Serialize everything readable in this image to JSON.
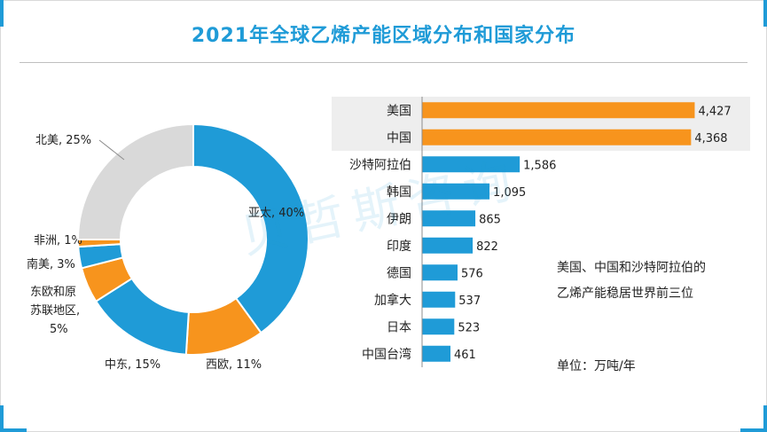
{
  "title": "2021年全球乙烯产能区域分布和国家分布",
  "watermark": "贝哲斯咨询",
  "colors": {
    "blue": "#1f9bd7",
    "orange": "#f7941d",
    "gray": "#d9d9d9",
    "highlight": "#eeeeee"
  },
  "note": "美国、中国和沙特阿拉伯的乙烯产能稳居世界前三位",
  "unit_label": "单位：万吨/年",
  "chart_data": [
    {
      "type": "pie",
      "subtype": "donut",
      "title": "2021年全球乙烯产能区域分布",
      "slices": [
        {
          "label": "亚太",
          "value": 40,
          "display": "亚太, 40%",
          "color": "#1f9bd7"
        },
        {
          "label": "西欧",
          "value": 11,
          "display": "西欧, 11%",
          "color": "#f7941d"
        },
        {
          "label": "中东",
          "value": 15,
          "display": "中东, 15%",
          "color": "#1f9bd7"
        },
        {
          "label": "东欧和原苏联地区",
          "value": 5,
          "display_lines": [
            "东欧和原",
            "苏联地区,",
            "5%"
          ],
          "color": "#f7941d"
        },
        {
          "label": "南美",
          "value": 3,
          "display": "南美, 3%",
          "color": "#1f9bd7"
        },
        {
          "label": "非洲",
          "value": 1,
          "display": "非洲, 1%",
          "color": "#f7941d"
        },
        {
          "label": "北美",
          "value": 25,
          "display": "北美, 25%",
          "color": "#d9d9d9"
        }
      ]
    },
    {
      "type": "bar",
      "orientation": "horizontal",
      "title": "2021年全球乙烯产能国家分布",
      "unit": "万吨/年",
      "xlim": [
        0,
        5000
      ],
      "categories": [
        "美国",
        "中国",
        "沙特阿拉伯",
        "韩国",
        "伊朗",
        "印度",
        "德国",
        "加拿大",
        "日本",
        "中国台湾"
      ],
      "values": [
        4427,
        4368,
        1586,
        1095,
        865,
        822,
        576,
        537,
        523,
        461
      ],
      "labels": [
        "4,427",
        "4,368",
        "1,586",
        "1,095",
        "865",
        "822",
        "576",
        "537",
        "523",
        "461"
      ],
      "highlighted": [
        "美国",
        "中国"
      ]
    }
  ]
}
